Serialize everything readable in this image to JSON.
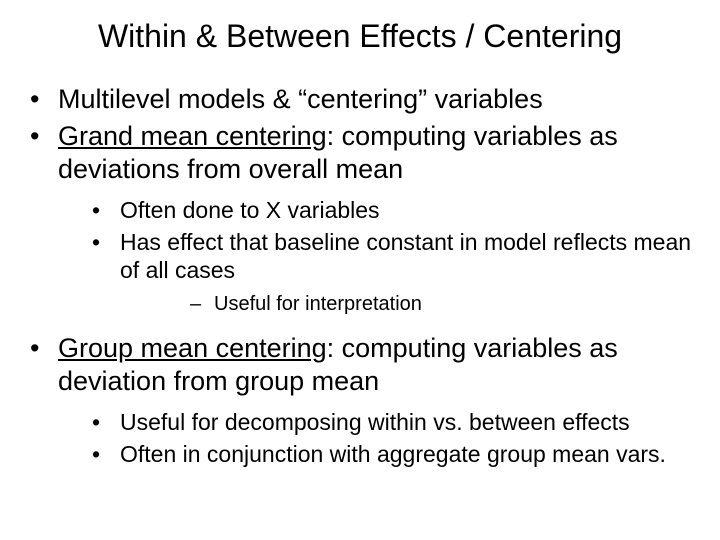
{
  "title": "Within & Between Effects / Centering",
  "l1": {
    "i0": "Multilevel models & “centering” variables",
    "i1_u": "Grand mean centering",
    "i1_rest": ":  computing variables as deviations from overall mean",
    "i2_u": "Group mean centering",
    "i2_rest": ":  computing variables as deviation from group mean"
  },
  "l2a": {
    "i0": "Often done to X variables",
    "i1": "Has effect that baseline constant in model reflects mean of all cases"
  },
  "l3a": {
    "i0": "Useful for interpretation"
  },
  "l2b": {
    "i0": "Useful for decomposing within vs. between effects",
    "i1": "Often in conjunction with aggregate group mean vars."
  }
}
